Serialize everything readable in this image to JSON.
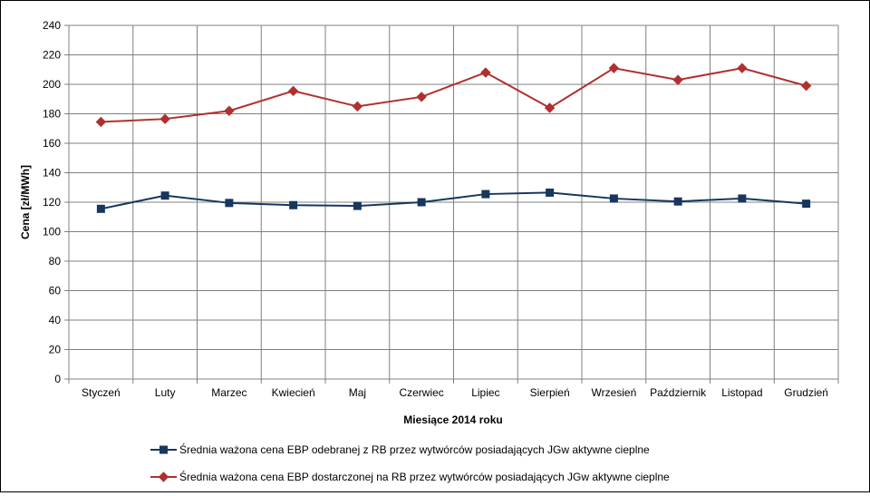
{
  "chart_data": {
    "type": "line",
    "title": "",
    "xlabel": "Miesiące 2014 roku",
    "ylabel": "Cena [zł/MWh]",
    "ylim": [
      0,
      240
    ],
    "yticks": [
      0,
      20,
      40,
      60,
      80,
      100,
      120,
      140,
      160,
      180,
      200,
      220,
      240
    ],
    "grid": true,
    "legend": "bottom",
    "categories": [
      "Styczeń",
      "Luty",
      "Marzec",
      "Kwiecień",
      "Maj",
      "Czerwiec",
      "Lipiec",
      "Sierpień",
      "Wrzesień",
      "Październik",
      "Listopad",
      "Grudzień"
    ],
    "series": [
      {
        "name": "Średnia ważona cena EBP odebranej z RB przez wytwórców posiadających JGw aktywne cieplne",
        "color": "#17375e",
        "marker": "square",
        "values": [
          115.5,
          124.5,
          119.5,
          118,
          117.5,
          120,
          125.5,
          126.5,
          122.5,
          120.5,
          122.5,
          119
        ]
      },
      {
        "name": "Średnia ważona cena EBP dostarczonej na RB przez wytwórców posiadających JGw aktywne cieplne",
        "color": "#b03030",
        "marker": "diamond",
        "values": [
          174.5,
          176.5,
          182,
          195.5,
          185,
          191.5,
          208,
          184,
          211,
          203,
          211,
          199
        ]
      }
    ]
  }
}
